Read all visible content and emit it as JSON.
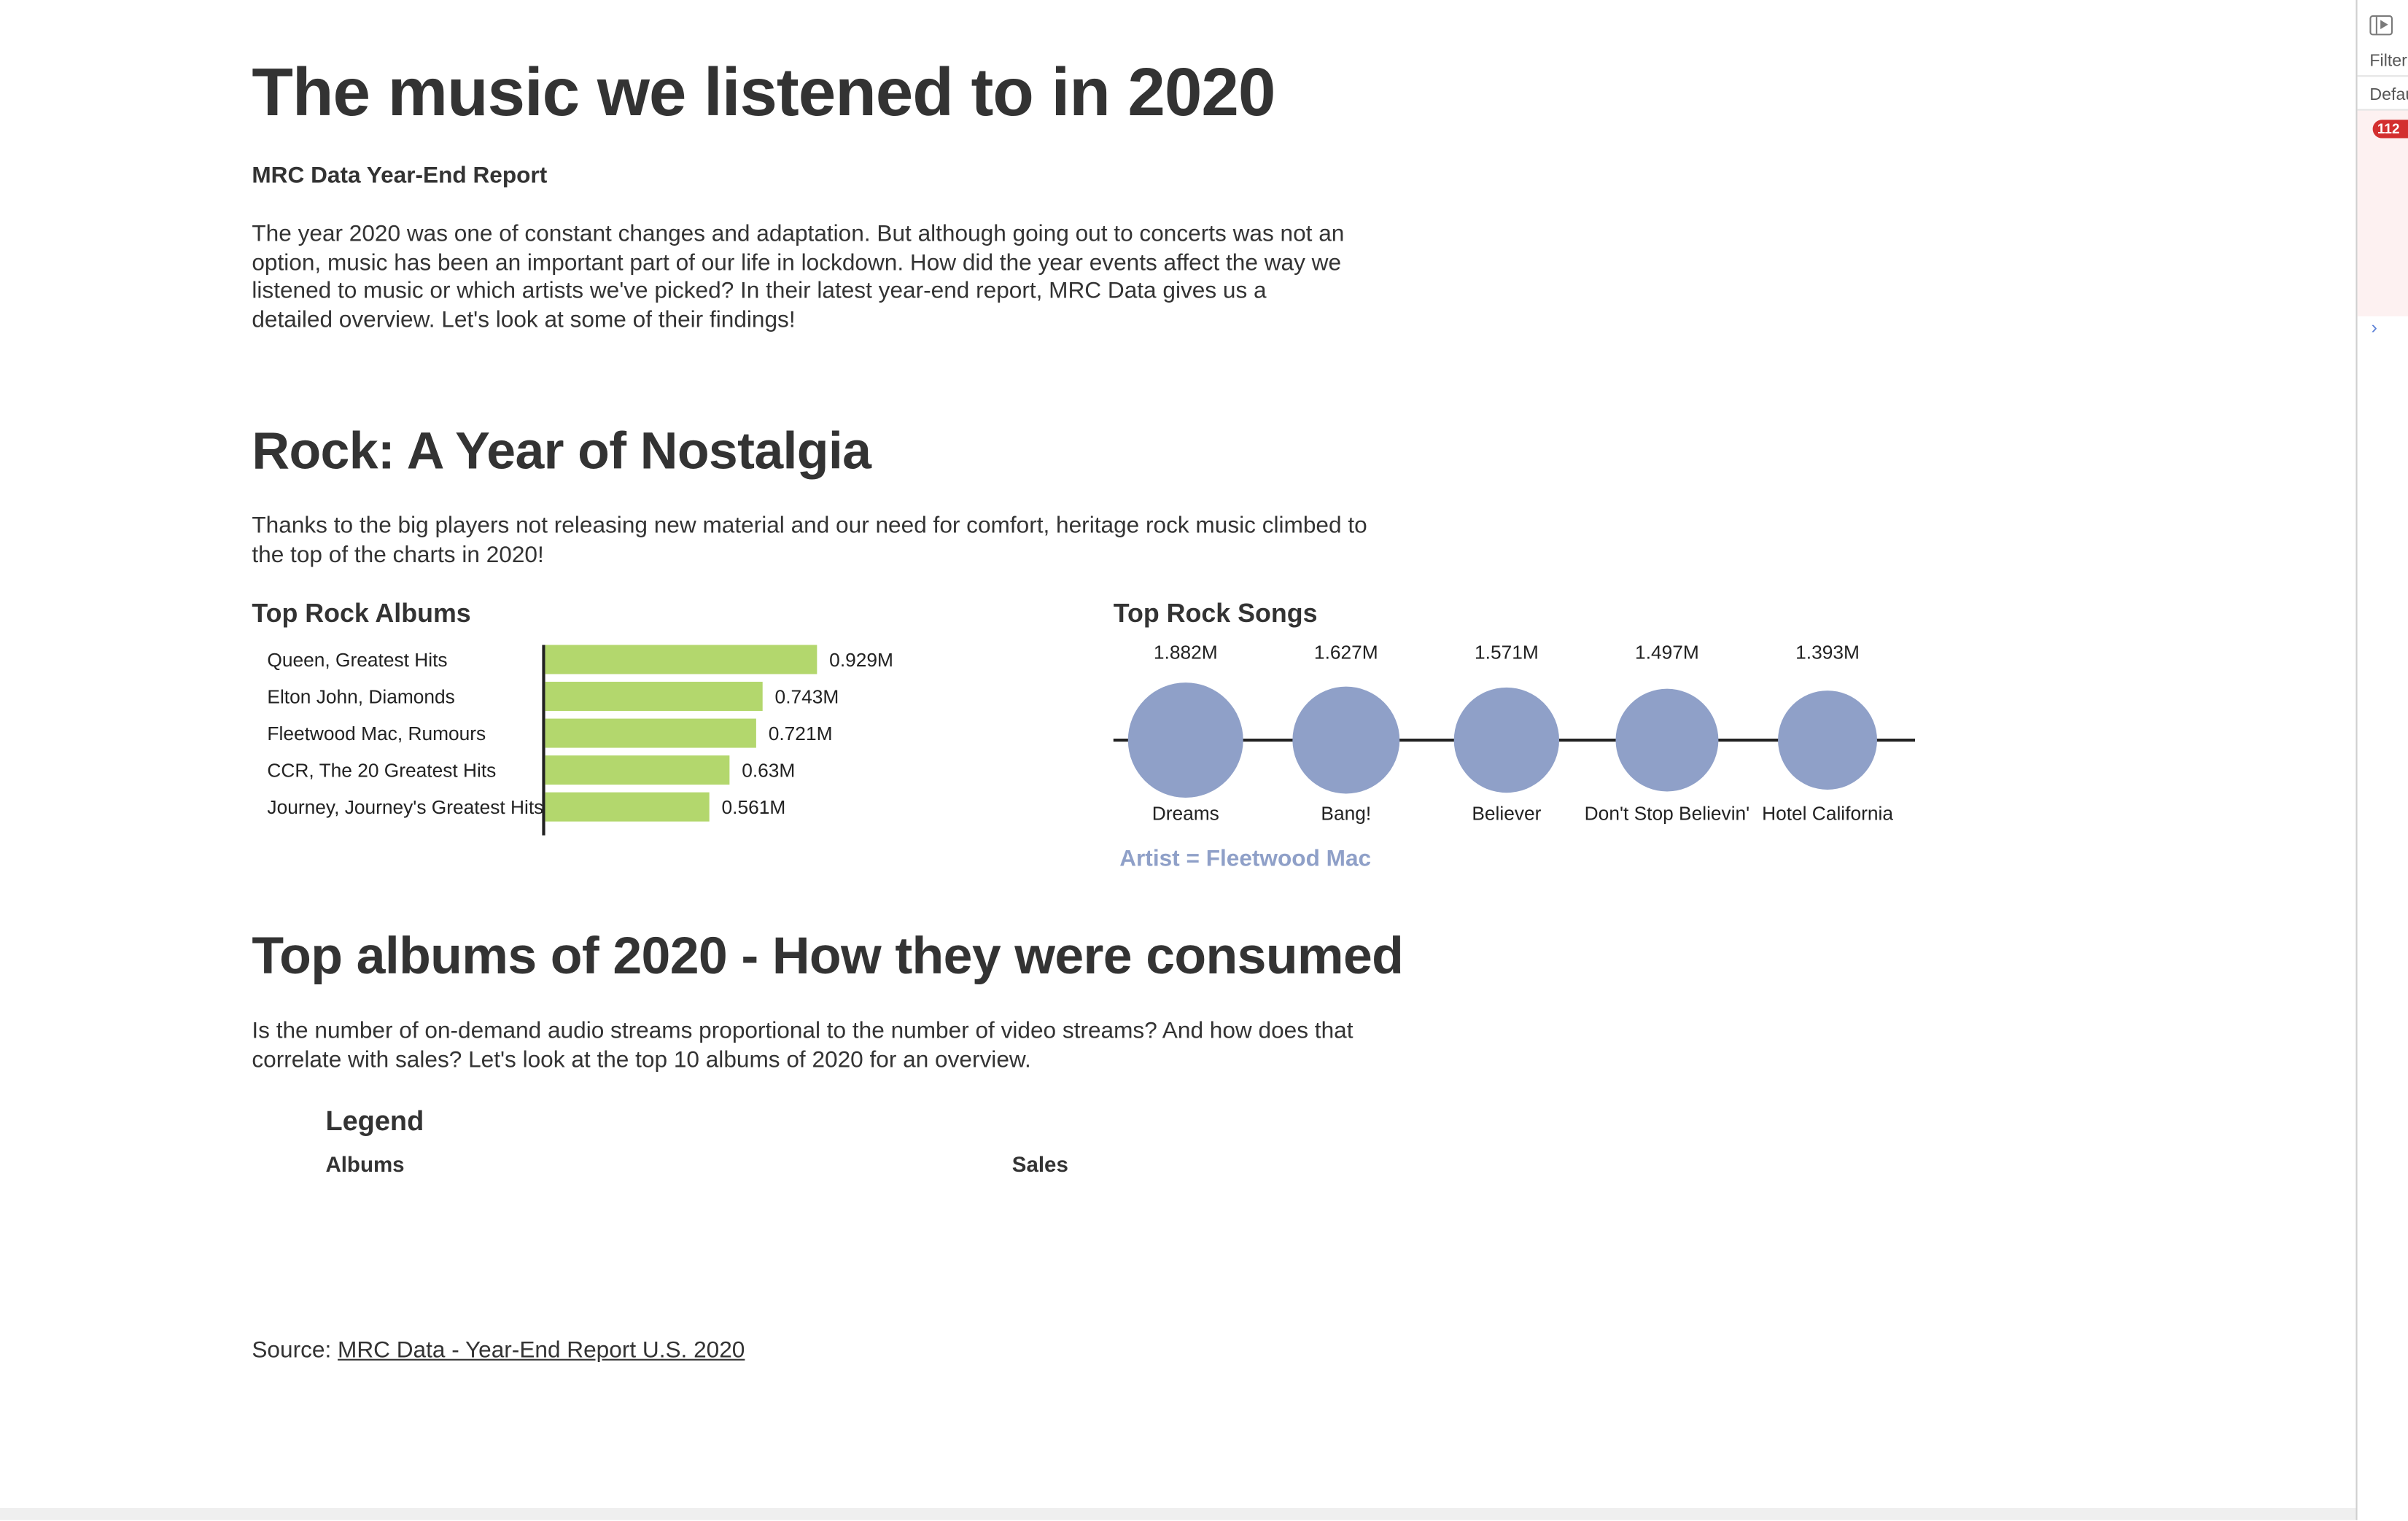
{
  "header": {
    "title": "The music we listened to in 2020",
    "subtitle": "MRC Data Year-End Report",
    "intro": "The year 2020 was one of constant changes and adaptation. But although going out to concerts was not an option, music has been an important part of our life in lockdown. How did the year events affect the way we listened to music or which artists we've picked? In their latest year-end report, MRC Data gives us a detailed overview. Let's look at some of their findings!"
  },
  "rock": {
    "heading": "Rock: A Year of Nostalgia",
    "text": "Thanks to the big players not releasing new material and our need for comfort, heritage rock music climbed to the top of the charts in 2020!",
    "albums_title": "Top Rock Albums",
    "songs_title": "Top Rock Songs",
    "artist_note": "Artist = Fleetwood Mac"
  },
  "top_albums": {
    "heading": "Top albums of 2020 - How they were consumed",
    "text": "Is the number of on-demand audio streams proportional to the number of video streams? And how does that correlate with sales? Let's look at the top 10 albums of 2020 for an overview.",
    "legend_title": "Legend",
    "legend_albums": "Albums",
    "legend_sales": "Sales"
  },
  "source": {
    "prefix": "Source: ",
    "link_text": "MRC Data - Year-End Report U.S. 2020"
  },
  "devtools": {
    "filter_label": "Filter",
    "default_label": "Defau",
    "badge": "112",
    "chevron": "›"
  },
  "colors": {
    "bar": "#b3d76d",
    "bubble": "#8fa0c8",
    "text": "#333333"
  },
  "chart_data": [
    {
      "type": "bar",
      "orientation": "horizontal",
      "title": "Top Rock Albums",
      "categories": [
        "Queen, Greatest Hits",
        "Elton John, Diamonds",
        "Fleetwood Mac, Rumours",
        "CCR, The 20 Greatest Hits",
        "Journey, Journey's Greatest Hits"
      ],
      "values": [
        0.929,
        0.743,
        0.721,
        0.63,
        0.561
      ],
      "labels": [
        "0.929M",
        "0.743M",
        "0.721M",
        "0.63M",
        "0.561M"
      ],
      "color": "#b3d76d"
    },
    {
      "type": "scatter",
      "encoding": "bubble-size",
      "title": "Top Rock Songs",
      "categories": [
        "Dreams",
        "Bang!",
        "Believer",
        "Don't Stop Believin'",
        "Hotel California"
      ],
      "values": [
        1.882,
        1.627,
        1.571,
        1.497,
        1.393
      ],
      "labels": [
        "1.882M",
        "1.627M",
        "1.571M",
        "1.497M",
        "1.393M"
      ],
      "color": "#8fa0c8"
    }
  ]
}
